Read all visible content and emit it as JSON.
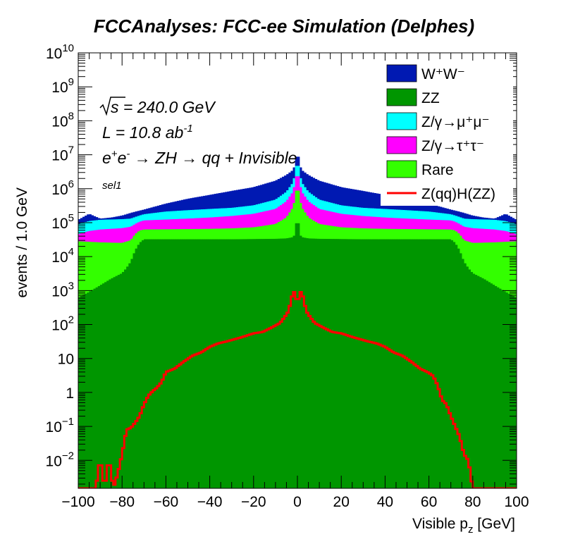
{
  "chart_data": {
    "type": "area",
    "title": "FCCAnalyses: FCC-ee Simulation (Delphes)",
    "xlabel": "Visible p",
    "xlabel_sub": "z",
    "xlabel_unit": "[GeV]",
    "ylabel": "events / 1.0 GeV",
    "xlim": [
      -100,
      100
    ],
    "ylim": [
      0.0015,
      10000000000.0
    ],
    "yscale": "log",
    "x_ticks": [
      -100,
      -80,
      -60,
      -40,
      -20,
      0,
      20,
      40,
      60,
      80,
      100
    ],
    "y_ticks": [
      {
        "value": 0.01,
        "base": "10",
        "exp": "−2"
      },
      {
        "value": 0.1,
        "base": "10",
        "exp": "−1"
      },
      {
        "value": 1,
        "base": "1",
        "exp": ""
      },
      {
        "value": 10,
        "base": "10",
        "exp": ""
      },
      {
        "value": 100,
        "base": "10",
        "exp": "2"
      },
      {
        "value": 1000,
        "base": "10",
        "exp": "3"
      },
      {
        "value": 10000,
        "base": "10",
        "exp": "4"
      },
      {
        "value": 100000,
        "base": "10",
        "exp": "5"
      },
      {
        "value": 1000000,
        "base": "10",
        "exp": "6"
      },
      {
        "value": 10000000,
        "base": "10",
        "exp": "7"
      },
      {
        "value": 100000000,
        "base": "10",
        "exp": "8"
      },
      {
        "value": 1000000000,
        "base": "10",
        "exp": "9"
      },
      {
        "value": 10000000000,
        "base": "10",
        "exp": "10"
      }
    ],
    "annotations": {
      "sqrt_s": "s = 240.0 GeV",
      "lumi": "L = 10.8 ab",
      "lumi_exp": "-1",
      "process_a": "e",
      "process_a_sup": "+",
      "process_b": "e",
      "process_b_sup": "-",
      "process_rest": " → ZH → qq + Invisible",
      "selection": "sel1"
    },
    "legend_position": "top-right",
    "series": [
      {
        "name": "W⁺W⁻",
        "color": "#0019b2",
        "stack": true,
        "x": [
          -100,
          -95,
          -90,
          -85,
          -80,
          -75,
          -70,
          -60,
          -50,
          -40,
          -30,
          -20,
          -10,
          -5,
          -2,
          -1,
          0,
          1,
          2,
          5,
          10,
          20,
          30,
          40,
          50,
          60,
          70,
          75,
          80,
          85,
          90,
          95,
          100
        ],
        "cum": [
          120000,
          180000,
          130000,
          140000,
          160000,
          200000,
          240000,
          360000,
          500000,
          650000,
          850000,
          1100000,
          1700000,
          2500000,
          3500000,
          5000000,
          15000000,
          5000000,
          3500000,
          2500000,
          1700000,
          1100000,
          850000,
          650000,
          500000,
          360000,
          240000,
          200000,
          160000,
          140000,
          130000,
          180000,
          120000
        ]
      },
      {
        "name": "ZZ",
        "color": "#009600",
        "stack": true,
        "x": [
          -100,
          -95,
          -90,
          -85,
          -80,
          -78,
          -76,
          -74,
          -72,
          -70,
          -60,
          -50,
          -40,
          -30,
          -20,
          -10,
          -5,
          -2,
          -1,
          0,
          1,
          2,
          5,
          10,
          20,
          30,
          40,
          50,
          60,
          70,
          72,
          74,
          76,
          78,
          80,
          85,
          90,
          95,
          100
        ],
        "cum": [
          600,
          900,
          1400,
          2200,
          3200,
          4500,
          7000,
          15000,
          25000,
          32000,
          32000,
          32000,
          32000,
          32000,
          32500,
          33000,
          34000,
          37000,
          45000,
          200000,
          45000,
          37000,
          34000,
          33000,
          32500,
          32000,
          32000,
          32000,
          32000,
          32000,
          25000,
          15000,
          7000,
          4500,
          3200,
          2200,
          1400,
          900,
          600
        ]
      },
      {
        "name": "Rare",
        "color": "#33ff00",
        "stack": true,
        "x": [
          -100,
          -90,
          -80,
          -76,
          -74,
          -72,
          -70,
          -60,
          -50,
          -40,
          -30,
          -20,
          -10,
          -5,
          -2,
          -1,
          0,
          1,
          2,
          5,
          10,
          20,
          30,
          40,
          50,
          60,
          70,
          72,
          74,
          76,
          80,
          90,
          100
        ],
        "cum": [
          28000,
          26000,
          25000,
          30000,
          45000,
          58000,
          62000,
          63000,
          64000,
          65000,
          67000,
          72000,
          90000,
          140000,
          280000,
          500000,
          1500000,
          500000,
          280000,
          140000,
          90000,
          72000,
          67000,
          65000,
          64000,
          63000,
          62000,
          58000,
          45000,
          30000,
          25000,
          26000,
          28000
        ]
      },
      {
        "name": "Z/γ→τ⁺τ⁻",
        "color": "#ff00ff",
        "stack": true,
        "x": [
          -100,
          -95,
          -90,
          -80,
          -76,
          -74,
          -72,
          -70,
          -60,
          -50,
          -40,
          -30,
          -20,
          -10,
          -5,
          -2,
          -1,
          0,
          1,
          2,
          5,
          10,
          20,
          30,
          40,
          50,
          60,
          70,
          72,
          74,
          76,
          80,
          90,
          95,
          100
        ],
        "cum": [
          45000,
          56000,
          62000,
          68000,
          75000,
          90000,
          105000,
          115000,
          122000,
          130000,
          140000,
          155000,
          180000,
          250000,
          420000,
          800000,
          1500000,
          3500000,
          1500000,
          800000,
          420000,
          250000,
          180000,
          155000,
          140000,
          130000,
          122000,
          115000,
          105000,
          90000,
          75000,
          68000,
          62000,
          56000,
          45000
        ]
      },
      {
        "name": "Z/γ→μ⁺μ⁻",
        "color": "#00ffff",
        "stack": true,
        "x": [
          -100,
          -95,
          -90,
          -80,
          -76,
          -74,
          -72,
          -70,
          -60,
          -50,
          -40,
          -30,
          -20,
          -10,
          -5,
          -2,
          -1,
          0,
          1,
          2,
          5,
          10,
          20,
          30,
          40,
          50,
          60,
          70,
          72,
          74,
          76,
          80,
          90,
          95,
          100
        ],
        "cum": [
          90000,
          110000,
          120000,
          125000,
          130000,
          145000,
          160000,
          175000,
          210000,
          230000,
          250000,
          270000,
          320000,
          470000,
          800000,
          1500000,
          2700000,
          8000000,
          2700000,
          1500000,
          800000,
          470000,
          320000,
          270000,
          250000,
          230000,
          210000,
          175000,
          160000,
          145000,
          130000,
          125000,
          120000,
          110000,
          90000
        ]
      },
      {
        "name": "Z(qq)H(ZZ)",
        "color": "#ff0000",
        "stack": false,
        "x": [
          -100,
          -96,
          -92,
          -90,
          -88,
          -86,
          -84,
          -82,
          -80,
          -78,
          -76,
          -74,
          -72,
          -70,
          -68,
          -66,
          -64,
          -62,
          -60,
          -56,
          -52,
          -48,
          -44,
          -40,
          -36,
          -32,
          -28,
          -24,
          -20,
          -16,
          -12,
          -8,
          -6,
          -4,
          -3,
          -2,
          -1,
          0,
          1,
          2,
          3,
          4,
          6,
          8,
          12,
          16,
          20,
          24,
          28,
          32,
          36,
          40,
          44,
          48,
          52,
          56,
          60,
          62,
          64,
          66,
          68,
          70,
          72,
          74,
          76,
          78,
          80,
          82,
          84,
          86,
          88,
          90,
          92,
          96,
          100
        ],
        "y": [
          0.0015,
          0.0015,
          0.0015,
          0.012,
          0.0015,
          0.012,
          0.0015,
          0.004,
          0.015,
          0.08,
          0.09,
          0.13,
          0.2,
          0.45,
          0.8,
          1.1,
          1.4,
          2.0,
          4.0,
          5.0,
          8.0,
          12.0,
          15.0,
          22.0,
          28.0,
          32.0,
          38.0,
          45.0,
          55.0,
          60.0,
          80.0,
          110.0,
          160.0,
          250.0,
          500.0,
          900.0,
          900.0,
          350.0,
          900.0,
          900.0,
          500.0,
          250.0,
          160.0,
          110.0,
          80.0,
          60.0,
          55.0,
          45.0,
          38.0,
          32.0,
          28.0,
          22.0,
          15.0,
          12.0,
          8.0,
          5.0,
          3.8,
          3.0,
          1.6,
          0.6,
          0.45,
          0.2,
          0.1,
          0.05,
          0.015,
          0.01,
          0.0015,
          0.0015,
          0.0015,
          0.0015,
          0.0015,
          0.0015,
          0.0015,
          0.0015,
          0.0015
        ]
      }
    ]
  }
}
